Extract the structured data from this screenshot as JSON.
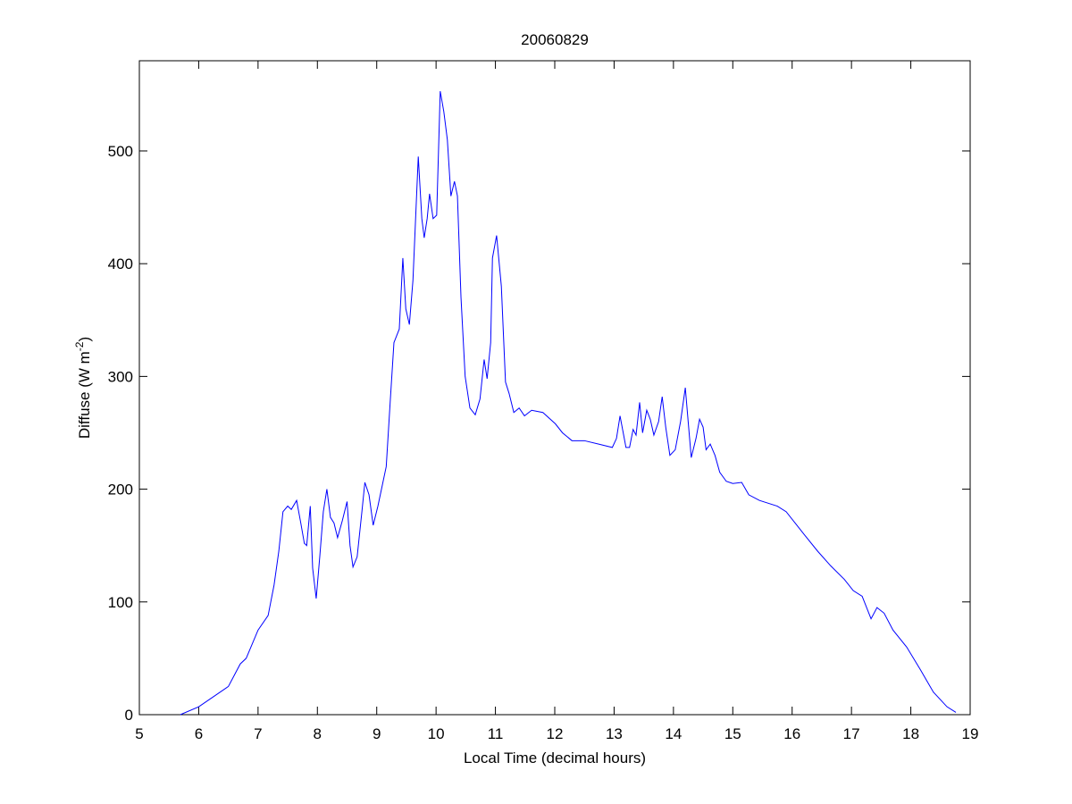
{
  "chart_data": {
    "type": "line",
    "title": "20060829",
    "xlabel": "Local Time (decimal hours)",
    "ylabel": [
      "Diffuse (W m",
      "-2",
      ")"
    ],
    "color": "#0000ff",
    "xlim": [
      5,
      19
    ],
    "xticks": [
      5,
      6,
      7,
      8,
      9,
      10,
      11,
      12,
      13,
      14,
      15,
      16,
      17,
      18,
      19
    ],
    "ylim": [
      0,
      580
    ],
    "yticks": [
      0,
      100,
      200,
      300,
      400,
      500
    ],
    "x": [
      5.69,
      6.0,
      6.5,
      6.7,
      6.8,
      7.0,
      7.17,
      7.27,
      7.35,
      7.42,
      7.5,
      7.56,
      7.65,
      7.72,
      7.78,
      7.82,
      7.88,
      7.92,
      7.98,
      8.04,
      8.1,
      8.16,
      8.22,
      8.28,
      8.34,
      8.42,
      8.5,
      8.55,
      8.6,
      8.67,
      8.75,
      8.8,
      8.87,
      8.94,
      9.02,
      9.1,
      9.16,
      9.23,
      9.29,
      9.38,
      9.44,
      9.49,
      9.55,
      9.61,
      9.7,
      9.76,
      9.8,
      9.85,
      9.89,
      9.95,
      10.01,
      10.07,
      10.13,
      10.19,
      10.25,
      10.31,
      10.36,
      10.42,
      10.49,
      10.57,
      10.66,
      10.74,
      10.81,
      10.86,
      10.92,
      10.95,
      11.02,
      11.1,
      11.17,
      11.23,
      11.31,
      11.4,
      11.49,
      11.61,
      11.8,
      12.01,
      12.13,
      12.29,
      12.5,
      12.74,
      12.97,
      13.04,
      13.1,
      13.2,
      13.26,
      13.32,
      13.37,
      13.43,
      13.48,
      13.55,
      13.61,
      13.67,
      13.75,
      13.81,
      13.87,
      13.94,
      14.03,
      14.12,
      14.2,
      14.24,
      14.3,
      14.38,
      14.44,
      14.5,
      14.55,
      14.62,
      14.7,
      14.78,
      14.89,
      15.0,
      15.15,
      15.27,
      15.45,
      15.75,
      15.9,
      16.05,
      16.2,
      16.43,
      16.65,
      16.88,
      17.03,
      17.18,
      17.33,
      17.43,
      17.55,
      17.7,
      17.93,
      18.16,
      18.38,
      18.61,
      18.76
    ],
    "values": [
      0,
      7,
      25,
      45,
      50,
      75,
      88,
      115,
      145,
      180,
      185,
      182,
      190,
      170,
      152,
      150,
      185,
      130,
      103,
      140,
      180,
      200,
      175,
      170,
      157,
      172,
      189,
      150,
      131,
      140,
      180,
      206,
      195,
      168,
      185,
      205,
      220,
      280,
      330,
      342,
      405,
      360,
      346,
      385,
      495,
      440,
      423,
      440,
      462,
      440,
      443,
      553,
      535,
      510,
      460,
      473,
      460,
      370,
      300,
      272,
      266,
      280,
      315,
      298,
      330,
      405,
      425,
      380,
      295,
      285,
      268,
      272,
      265,
      270,
      268,
      258,
      250,
      243,
      243,
      240,
      237,
      245,
      265,
      237,
      237,
      253,
      248,
      277,
      250,
      270,
      262,
      248,
      260,
      282,
      255,
      230,
      235,
      260,
      290,
      265,
      228,
      245,
      262,
      255,
      235,
      240,
      230,
      215,
      207,
      205,
      206,
      195,
      190,
      185,
      180,
      170,
      160,
      145,
      132,
      120,
      110,
      105,
      85,
      95,
      90,
      75,
      60,
      40,
      20,
      7,
      2
    ]
  }
}
